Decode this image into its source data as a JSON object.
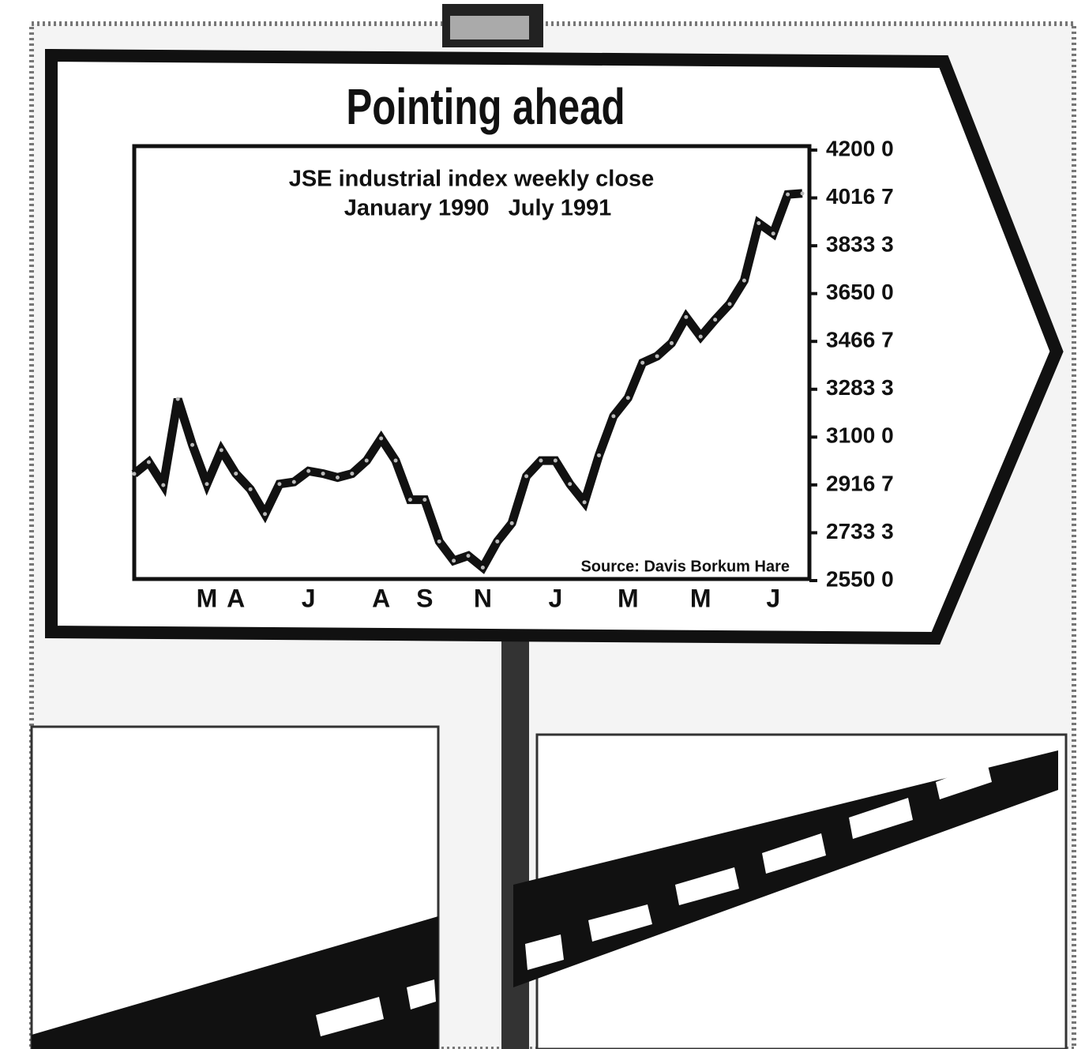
{
  "chart_data": {
    "type": "line",
    "title": "Pointing ahead",
    "subtitle": [
      "JSE industrial index weekly close",
      "January 1990   July 1991"
    ],
    "source": "Source: Davis Borkum Hare",
    "categories": [
      null,
      null,
      null,
      null,
      null,
      "M",
      null,
      "A",
      null,
      null,
      null,
      null,
      "J",
      null,
      null,
      null,
      null,
      "A",
      null,
      null,
      "S",
      null,
      null,
      null,
      "N",
      null,
      null,
      null,
      null,
      "J",
      null,
      null,
      null,
      null,
      "M",
      null,
      null,
      null,
      null,
      "M",
      null,
      null,
      null,
      null,
      "J",
      null,
      null
    ],
    "series": [
      {
        "color": "#111111",
        "values": [
          2959,
          3004,
          2916,
          3246,
          3070,
          2920,
          3050,
          2960,
          2900,
          2805,
          2920,
          2928,
          2970,
          2960,
          2945,
          2960,
          3010,
          3095,
          3010,
          2860,
          2860,
          2700,
          2626,
          2645,
          2600,
          2700,
          2770,
          2950,
          3010,
          3010,
          2920,
          2850,
          3030,
          3180,
          3250,
          3385,
          3410,
          3460,
          3560,
          3485,
          3550,
          3610,
          3700,
          3920,
          3880,
          4030,
          4034
        ]
      }
    ],
    "ylim": [
      2550.0,
      4200.0
    ],
    "yticks": [
      {
        "value": 2550.0,
        "label": "2550 0"
      },
      {
        "value": 2733.3,
        "label": "2733 3"
      },
      {
        "value": 2916.7,
        "label": "2916 7"
      },
      {
        "value": 3100.0,
        "label": "3100 0"
      },
      {
        "value": 3283.3,
        "label": "3283 3"
      },
      {
        "value": 3466.7,
        "label": "3466 7"
      },
      {
        "value": 3650.0,
        "label": "3650 0"
      },
      {
        "value": 3833.3,
        "label": "3833 3"
      },
      {
        "value": 4016.7,
        "label": "4016 7"
      },
      {
        "value": 4200.0,
        "label": "4200 0"
      }
    ],
    "grid": false
  }
}
